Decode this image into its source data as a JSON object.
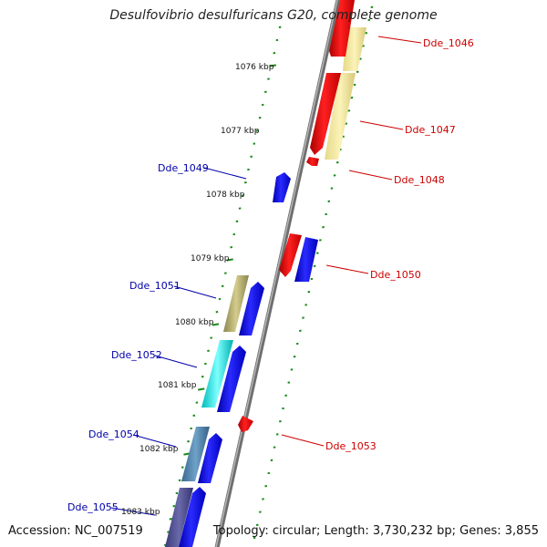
{
  "title": "Desulfovibrio desulfuricans G20, complete genome",
  "footer": {
    "accession": "Accession: NC_007519",
    "topology": "Topology: circular; Length: 3,730,232 bp; Genes: 3,855"
  },
  "colors": {
    "forward_strand": "#0000ee",
    "reverse_strand": "#ee0000",
    "forward_label": "#0000aa",
    "reverse_label": "#cc0000",
    "tick": "#1a8a1a",
    "backbone": "#888888"
  },
  "ruler": {
    "ticks": [
      {
        "label": "1076 kbp"
      },
      {
        "label": "1077 kbp"
      },
      {
        "label": "1078 kbp"
      },
      {
        "label": "1079 kbp"
      },
      {
        "label": "1080 kbp"
      },
      {
        "label": "1081 kbp"
      },
      {
        "label": "1082 kbp"
      },
      {
        "label": "1083 kbp"
      }
    ]
  },
  "genes": [
    {
      "id": "Dde_1046",
      "strand": "reverse"
    },
    {
      "id": "Dde_1047",
      "strand": "reverse"
    },
    {
      "id": "Dde_1048",
      "strand": "reverse"
    },
    {
      "id": "Dde_1049",
      "strand": "forward"
    },
    {
      "id": "Dde_1050",
      "strand": "reverse"
    },
    {
      "id": "Dde_1051",
      "strand": "forward"
    },
    {
      "id": "Dde_1052",
      "strand": "forward"
    },
    {
      "id": "Dde_1053",
      "strand": "reverse"
    },
    {
      "id": "Dde_1054",
      "strand": "forward"
    },
    {
      "id": "Dde_1055",
      "strand": "forward"
    }
  ]
}
